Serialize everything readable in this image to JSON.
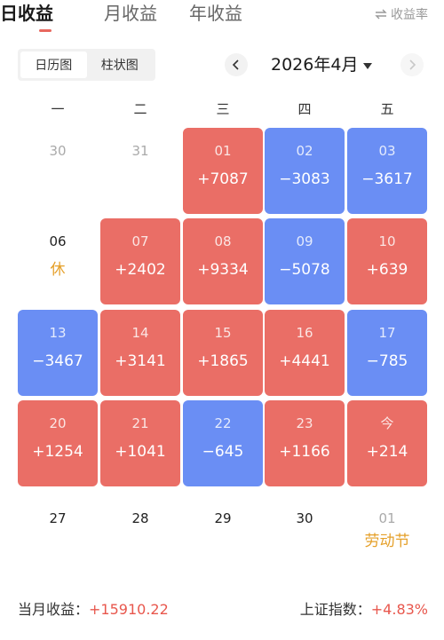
{
  "tabs": [
    {
      "label": "日收益",
      "active": true
    },
    {
      "label": "月收益",
      "active": false
    },
    {
      "label": "年收益",
      "active": false
    }
  ],
  "rate_toggle": {
    "label": "收益率",
    "icon": "swap-arrows-icon"
  },
  "view_toggle": {
    "calendar": "日历图",
    "bar": "柱状图",
    "selected": "日历图"
  },
  "month_nav": {
    "label": "2026年4月",
    "prev_icon": "chevron-left-icon",
    "next_icon": "chevron-right-icon",
    "dropdown_icon": "caret-down-icon"
  },
  "weekdays": [
    "一",
    "二",
    "三",
    "四",
    "五"
  ],
  "days": [
    {
      "date": "30",
      "value": "",
      "kind": "plain"
    },
    {
      "date": "31",
      "value": "",
      "kind": "plain"
    },
    {
      "date": "01",
      "value": "+7087",
      "kind": "up"
    },
    {
      "date": "02",
      "value": "−3083",
      "kind": "down"
    },
    {
      "date": "03",
      "value": "−3617",
      "kind": "down"
    },
    {
      "date": "06",
      "value": "休",
      "kind": "plain-current-holiday"
    },
    {
      "date": "07",
      "value": "+2402",
      "kind": "up"
    },
    {
      "date": "08",
      "value": "+9334",
      "kind": "up"
    },
    {
      "date": "09",
      "value": "−5078",
      "kind": "down"
    },
    {
      "date": "10",
      "value": "+639",
      "kind": "up"
    },
    {
      "date": "13",
      "value": "−3467",
      "kind": "down"
    },
    {
      "date": "14",
      "value": "+3141",
      "kind": "up"
    },
    {
      "date": "15",
      "value": "+1865",
      "kind": "up"
    },
    {
      "date": "16",
      "value": "+4441",
      "kind": "up"
    },
    {
      "date": "17",
      "value": "−785",
      "kind": "down"
    },
    {
      "date": "20",
      "value": "+1254",
      "kind": "up"
    },
    {
      "date": "21",
      "value": "+1041",
      "kind": "up"
    },
    {
      "date": "22",
      "value": "−645",
      "kind": "down"
    },
    {
      "date": "23",
      "value": "+1166",
      "kind": "up"
    },
    {
      "date": "今",
      "value": "+214",
      "kind": "up"
    },
    {
      "date": "27",
      "value": "",
      "kind": "plain-current"
    },
    {
      "date": "28",
      "value": "",
      "kind": "plain-current"
    },
    {
      "date": "29",
      "value": "",
      "kind": "plain-current"
    },
    {
      "date": "30",
      "value": "",
      "kind": "plain-current"
    },
    {
      "date": "01",
      "value": "劳动节",
      "kind": "plain-holiday"
    }
  ],
  "footer": {
    "month_label": "当月收益：",
    "month_value": "+15910.22",
    "index_label": "上证指数：",
    "index_value": "+4.83%"
  },
  "colors": {
    "up": "#ea6e66",
    "down": "#6a8ef4",
    "holiday": "#e5a02a",
    "accent": "#e8574d"
  }
}
